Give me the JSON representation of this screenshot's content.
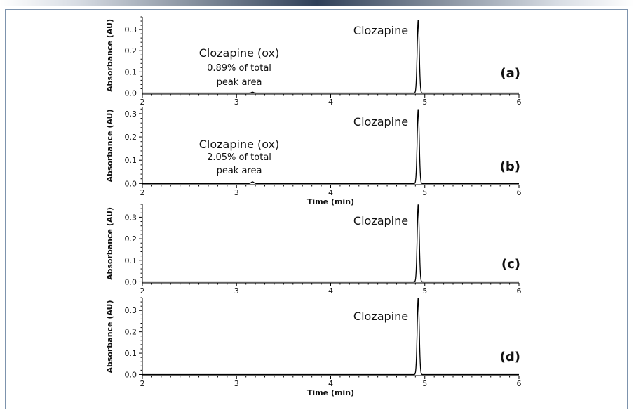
{
  "colors": {
    "trace": "#000000",
    "axis": "#000000",
    "frame_border": "#7d93ad",
    "banner_center": "#2f3f58"
  },
  "chart_data": [
    {
      "type": "line",
      "panel_label": "(a)",
      "ylabel": "Absorbance (AU)",
      "xlabel": "",
      "xlim": [
        2,
        6
      ],
      "ylim": [
        -0.005,
        0.36
      ],
      "x_ticks": [
        "2",
        "3",
        "4",
        "5",
        "6"
      ],
      "y_ticks": [
        "0.0",
        "0.1",
        "0.2",
        "0.3"
      ],
      "grid": false,
      "peaks": [
        {
          "x": 3.17,
          "y": 0.004,
          "width": 0.012
        },
        {
          "x": 4.93,
          "y": 0.345,
          "width": 0.011
        }
      ],
      "annotations": [
        {
          "id": "main",
          "text": "Clozapine"
        },
        {
          "id": "ox_name",
          "text": "Clozapine (ox)"
        },
        {
          "id": "ox_pct",
          "text": "0.89% of total"
        },
        {
          "id": "ox_area",
          "text": "peak area"
        }
      ]
    },
    {
      "type": "line",
      "panel_label": "(b)",
      "ylabel": "Absorbance (AU)",
      "xlabel": "Time (min)",
      "xlim": [
        2,
        6
      ],
      "ylim": [
        -0.005,
        0.33
      ],
      "x_ticks": [
        "2",
        "3",
        "4",
        "5",
        "6"
      ],
      "y_ticks": [
        "0.0",
        "0.1",
        "0.2",
        "0.3"
      ],
      "grid": false,
      "peaks": [
        {
          "x": 3.17,
          "y": 0.007,
          "width": 0.014
        },
        {
          "x": 4.93,
          "y": 0.32,
          "width": 0.011
        }
      ],
      "annotations": [
        {
          "id": "main",
          "text": "Clozapine"
        },
        {
          "id": "ox_name",
          "text": "Clozapine (ox)"
        },
        {
          "id": "ox_pct",
          "text": "2.05% of total"
        },
        {
          "id": "ox_area",
          "text": "peak area"
        }
      ]
    },
    {
      "type": "line",
      "panel_label": "(c)",
      "ylabel": "Absorbance (AU)",
      "xlabel": "",
      "xlim": [
        2,
        6
      ],
      "ylim": [
        -0.005,
        0.36
      ],
      "x_ticks": [
        "2",
        "3",
        "4",
        "5",
        "6"
      ],
      "y_ticks": [
        "0.0",
        "0.1",
        "0.2",
        "0.3"
      ],
      "grid": false,
      "peaks": [
        {
          "x": 4.93,
          "y": 0.36,
          "width": 0.011
        }
      ],
      "annotations": [
        {
          "id": "main",
          "text": "Clozapine"
        }
      ]
    },
    {
      "type": "line",
      "panel_label": "(d)",
      "ylabel": "Absorbance (AU)",
      "xlabel": "Time (min)",
      "xlim": [
        2,
        6
      ],
      "ylim": [
        -0.005,
        0.36
      ],
      "x_ticks": [
        "2",
        "3",
        "4",
        "5",
        "6"
      ],
      "y_ticks": [
        "0.0",
        "0.1",
        "0.2",
        "0.3"
      ],
      "grid": false,
      "peaks": [
        {
          "x": 4.93,
          "y": 0.36,
          "width": 0.011
        }
      ],
      "annotations": [
        {
          "id": "main",
          "text": "Clozapine"
        }
      ]
    }
  ]
}
